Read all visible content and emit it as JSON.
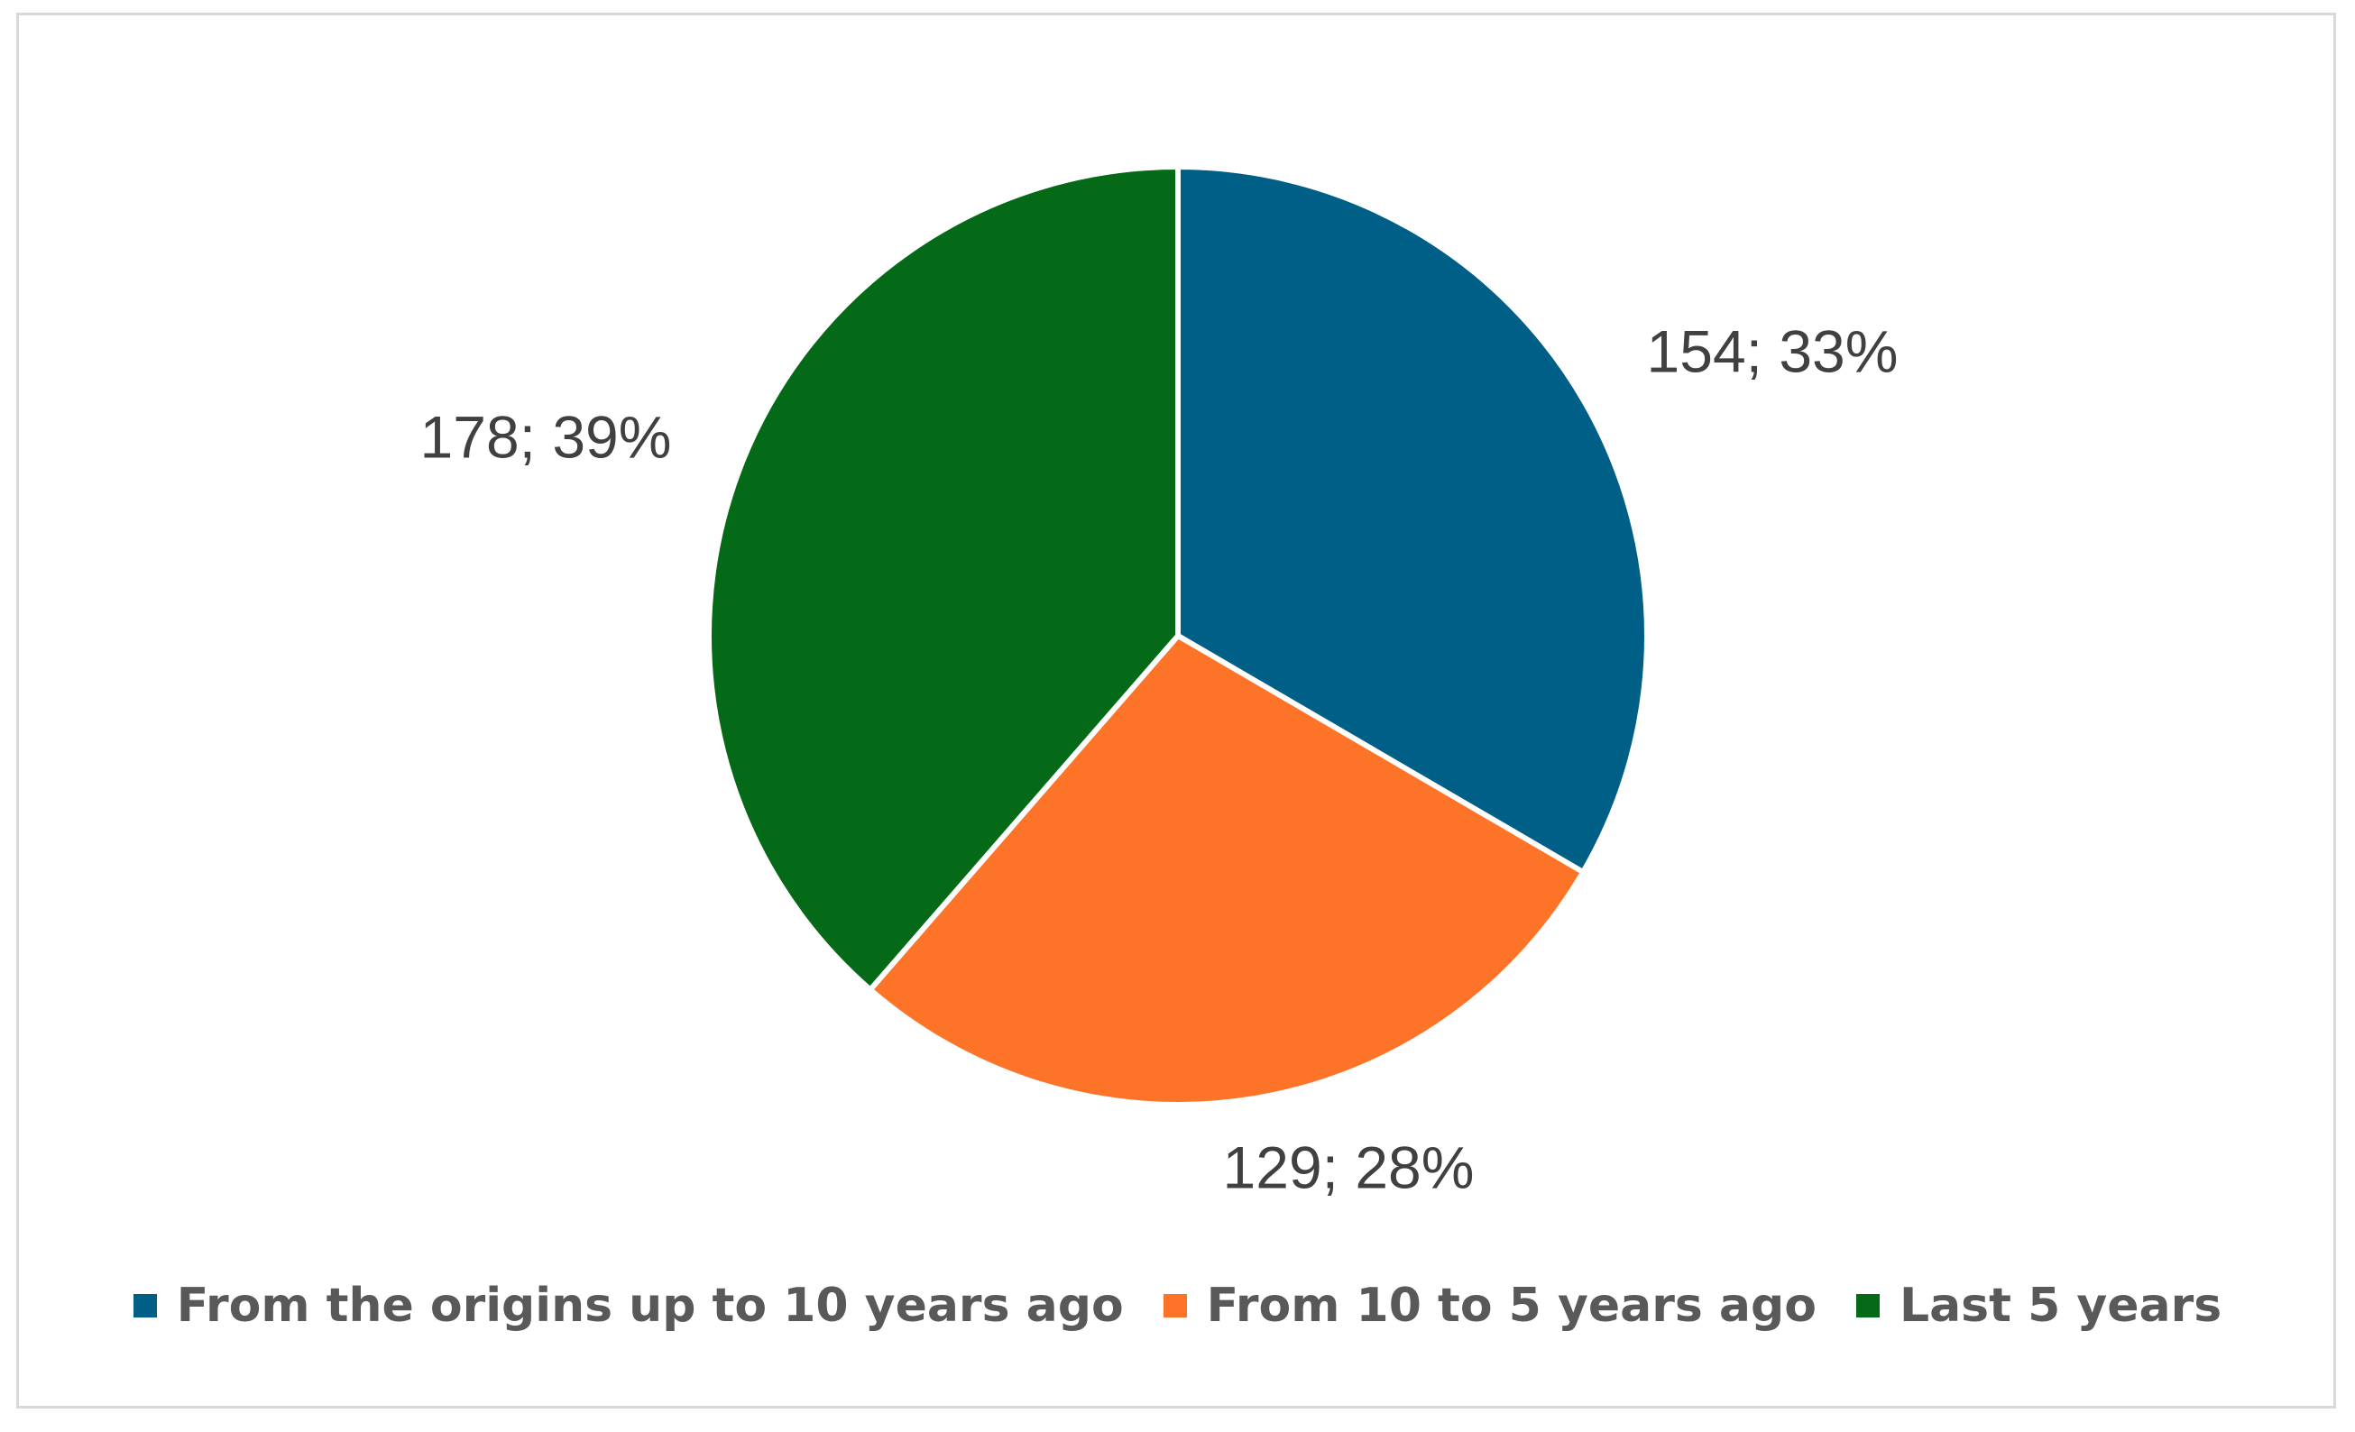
{
  "chart_data": {
    "type": "pie",
    "title": "",
    "legend_position": "bottom",
    "slices": [
      {
        "name": "From the origins up to 10 years ago",
        "value": 154,
        "percent": 33,
        "label": "154; 33%",
        "color": "#005f86"
      },
      {
        "name": "From 10 to 5 years ago",
        "value": 129,
        "percent": 28,
        "label": "129; 28%",
        "color": "#fd7328"
      },
      {
        "name": "Last 5 years",
        "value": 178,
        "percent": 39,
        "label": "178; 39%",
        "color": "#046a17"
      }
    ]
  }
}
